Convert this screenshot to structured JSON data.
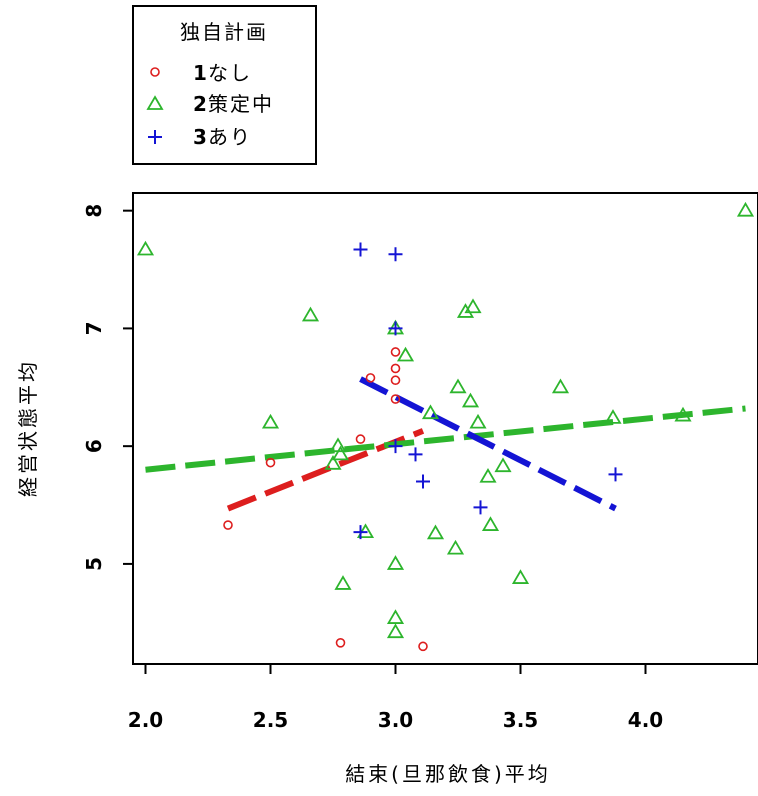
{
  "chart_data": {
    "type": "scatter",
    "xlabel": "結束(旦那飲食)平均",
    "ylabel": "経営状態平均",
    "xlim": [
      1.95,
      4.45
    ],
    "ylim": [
      4.15,
      8.15
    ],
    "xticks": [
      "2.0",
      "2.5",
      "3.0",
      "3.5",
      "4.0"
    ],
    "xtick_values": [
      2.0,
      2.5,
      3.0,
      3.5,
      4.0
    ],
    "yticks": [
      "5",
      "6",
      "7",
      "8"
    ],
    "ytick_values": [
      5,
      6,
      7,
      8
    ],
    "legend": {
      "title": "独自計画",
      "placement": "top-left, outside plot",
      "entries": [
        {
          "num": "1",
          "label": "なし"
        },
        {
          "num": "2",
          "label": "策定中"
        },
        {
          "num": "3",
          "label": "あり"
        }
      ]
    },
    "series": [
      {
        "name": "1なし",
        "marker": "circle",
        "color": "#dd1e1e",
        "points": [
          [
            2.33,
            5.33
          ],
          [
            2.5,
            5.86
          ],
          [
            2.78,
            4.33
          ],
          [
            2.86,
            6.06
          ],
          [
            2.9,
            6.58
          ],
          [
            3.0,
            6.8
          ],
          [
            3.0,
            6.66
          ],
          [
            3.0,
            6.56
          ],
          [
            3.0,
            6.4
          ],
          [
            3.11,
            4.3
          ]
        ],
        "fit": {
          "x0": 2.33,
          "x1": 3.11,
          "y0": 5.47,
          "y1": 6.13
        }
      },
      {
        "name": "2策定中",
        "marker": "triangle",
        "color": "#2db52d",
        "points": [
          [
            2.0,
            7.67
          ],
          [
            2.5,
            6.2
          ],
          [
            2.66,
            7.11
          ],
          [
            2.75,
            5.85
          ],
          [
            2.77,
            6.0
          ],
          [
            2.78,
            5.93
          ],
          [
            2.79,
            4.83
          ],
          [
            2.88,
            5.27
          ],
          [
            3.0,
            5.0
          ],
          [
            3.0,
            4.54
          ],
          [
            3.0,
            4.42
          ],
          [
            3.0,
            7.0
          ],
          [
            3.04,
            6.77
          ],
          [
            3.14,
            6.28
          ],
          [
            3.16,
            5.26
          ],
          [
            3.24,
            5.13
          ],
          [
            3.25,
            6.5
          ],
          [
            3.28,
            7.14
          ],
          [
            3.3,
            6.38
          ],
          [
            3.31,
            7.18
          ],
          [
            3.33,
            6.2
          ],
          [
            3.37,
            5.74
          ],
          [
            3.38,
            5.33
          ],
          [
            3.43,
            5.83
          ],
          [
            3.5,
            4.88
          ],
          [
            3.66,
            6.5
          ],
          [
            3.87,
            6.24
          ],
          [
            4.15,
            6.26
          ],
          [
            4.4,
            8.0
          ]
        ],
        "fit": {
          "x0": 2.0,
          "x1": 4.4,
          "y0": 5.8,
          "y1": 6.32
        }
      },
      {
        "name": "3あり",
        "marker": "plus",
        "color": "#1414d4",
        "points": [
          [
            2.86,
            7.67
          ],
          [
            2.86,
            5.27
          ],
          [
            3.0,
            7.63
          ],
          [
            3.0,
            7.0
          ],
          [
            3.0,
            6.0
          ],
          [
            3.08,
            5.93
          ],
          [
            3.11,
            5.7
          ],
          [
            3.34,
            5.48
          ],
          [
            3.88,
            5.76
          ]
        ],
        "fit": {
          "x0": 2.86,
          "x1": 3.88,
          "y0": 6.57,
          "y1": 5.47
        }
      }
    ]
  }
}
